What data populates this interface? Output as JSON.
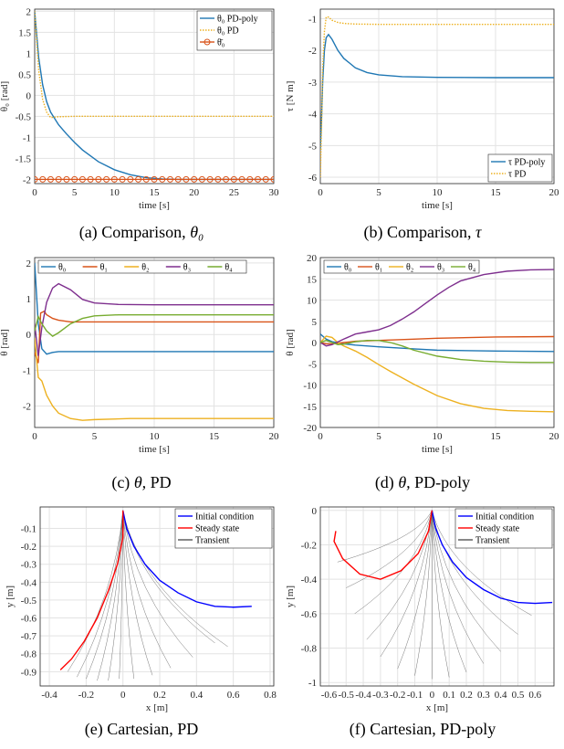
{
  "figure": {
    "captions": [
      {
        "label": "(a)",
        "text": "Comparison,",
        "symbol": "θ₀"
      },
      {
        "label": "(b)",
        "text": "Comparison,",
        "symbol": "τ"
      },
      {
        "label": "(c)",
        "text": "PD",
        "symbol": "θ,"
      },
      {
        "label": "(d)",
        "text": "PD-poly",
        "symbol": "θ,"
      },
      {
        "label": "(e)",
        "text": "Cartesian, PD",
        "symbol": ""
      },
      {
        "label": "(f)",
        "text": "Cartesian, PD-poly",
        "symbol": ""
      }
    ]
  },
  "colors": {
    "blue": "#1f77b4",
    "yellow": "#edb120",
    "orange": "#d95319",
    "purple": "#7e2f8e",
    "green": "#77ac30",
    "deepblue": "#0000ff",
    "red": "#ff0000",
    "grey": "#555555"
  },
  "chart_data": [
    {
      "type": "line",
      "xlabel": "time [s]",
      "ylabel": "θ₀ [rad]",
      "xlim": [
        0,
        30
      ],
      "ylim": [
        -2.1,
        2.05
      ],
      "xticks": [
        0,
        5,
        10,
        15,
        20,
        25,
        30
      ],
      "yticks": [
        2,
        1.5,
        1,
        0.5,
        0,
        -0.5,
        -1,
        -1.5,
        -2
      ],
      "grid": true,
      "legend": "top-right",
      "series": [
        {
          "name": "θ₀ PD-poly",
          "color": "blue",
          "style": "solid",
          "x": [
            0,
            0.5,
            1,
            1.5,
            2,
            3,
            4,
            5,
            6,
            8,
            10,
            12,
            14,
            16,
            18,
            20,
            25,
            30
          ],
          "y": [
            2.0,
            0.9,
            0.25,
            -0.15,
            -0.4,
            -0.7,
            -0.92,
            -1.12,
            -1.3,
            -1.58,
            -1.77,
            -1.89,
            -1.96,
            -1.99,
            -2.0,
            -2.0,
            -2.0,
            -2.0
          ]
        },
        {
          "name": "θ₀ PD",
          "color": "yellow",
          "style": "dotted",
          "x": [
            0,
            0.5,
            1,
            1.5,
            2,
            2.5,
            3,
            5,
            10,
            20,
            30
          ],
          "y": [
            2.0,
            0.6,
            -0.1,
            -0.4,
            -0.53,
            -0.52,
            -0.51,
            -0.5,
            -0.5,
            -0.5,
            -0.5
          ]
        },
        {
          "name": "θ̄₀",
          "color": "orange",
          "style": "circles",
          "x": [
            0,
            1,
            2,
            3,
            4,
            5,
            6,
            7,
            8,
            9,
            10,
            11,
            12,
            13,
            14,
            15,
            16,
            17,
            18,
            19,
            20,
            21,
            22,
            23,
            24,
            25,
            26,
            27,
            28,
            29,
            30
          ],
          "y": [
            -2,
            -2,
            -2,
            -2,
            -2,
            -2,
            -2,
            -2,
            -2,
            -2,
            -2,
            -2,
            -2,
            -2,
            -2,
            -2,
            -2,
            -2,
            -2,
            -2,
            -2,
            -2,
            -2,
            -2,
            -2,
            -2,
            -2,
            -2,
            -2,
            -2,
            -2
          ]
        }
      ]
    },
    {
      "type": "line",
      "xlabel": "time [s]",
      "ylabel": "τ [N m]",
      "xlim": [
        0,
        20
      ],
      "ylim": [
        -6.2,
        -0.7
      ],
      "xticks": [
        0,
        5,
        10,
        15,
        20
      ],
      "yticks": [
        -1,
        -2,
        -3,
        -4,
        -5,
        -6
      ],
      "grid": true,
      "legend": "bottom-right",
      "series": [
        {
          "name": "τ PD-poly",
          "color": "blue",
          "style": "solid",
          "x": [
            0,
            0.1,
            0.2,
            0.35,
            0.5,
            0.7,
            1,
            1.5,
            2,
            3,
            4,
            5,
            7,
            10,
            15,
            20
          ],
          "y": [
            -5.1,
            -4.2,
            -3.0,
            -2.0,
            -1.6,
            -1.5,
            -1.65,
            -2.0,
            -2.25,
            -2.55,
            -2.7,
            -2.77,
            -2.83,
            -2.85,
            -2.86,
            -2.86
          ]
        },
        {
          "name": "τ PD",
          "color": "yellow",
          "style": "dotted",
          "x": [
            0,
            0.1,
            0.2,
            0.35,
            0.5,
            0.7,
            1,
            1.5,
            2,
            3,
            5,
            10,
            20
          ],
          "y": [
            -6.0,
            -4.5,
            -2.6,
            -1.4,
            -0.95,
            -0.95,
            -1.05,
            -1.12,
            -1.15,
            -1.17,
            -1.18,
            -1.18,
            -1.18
          ]
        }
      ]
    },
    {
      "type": "line",
      "xlabel": "time [s]",
      "ylabel": "θ [rad]",
      "xlim": [
        0,
        20
      ],
      "ylim": [
        -2.6,
        2.15
      ],
      "xticks": [
        0,
        5,
        10,
        15,
        20
      ],
      "yticks": [
        2,
        1,
        0,
        -1,
        -2
      ],
      "grid": true,
      "legend": "top",
      "series": [
        {
          "name": "θ₀",
          "color": "blue",
          "x": [
            0,
            0.3,
            0.6,
            1,
            1.5,
            2,
            3,
            5,
            10,
            20
          ],
          "y": [
            2.0,
            0.3,
            -0.4,
            -0.55,
            -0.5,
            -0.48,
            -0.48,
            -0.48,
            -0.48,
            -0.48
          ]
        },
        {
          "name": "θ₁",
          "color": "orange",
          "x": [
            0,
            0.3,
            0.5,
            0.8,
            1,
            1.5,
            2,
            3,
            5,
            10,
            20
          ],
          "y": [
            -0.5,
            -0.8,
            0.6,
            0.65,
            0.55,
            0.45,
            0.4,
            0.35,
            0.35,
            0.35,
            0.35
          ]
        },
        {
          "name": "θ₂",
          "color": "yellow",
          "x": [
            0,
            0.3,
            0.6,
            1,
            1.5,
            2,
            3,
            4,
            5,
            8,
            10,
            20
          ],
          "y": [
            -0.1,
            -1.2,
            -1.3,
            -1.7,
            -2.0,
            -2.2,
            -2.35,
            -2.4,
            -2.38,
            -2.35,
            -2.35,
            -2.35
          ]
        },
        {
          "name": "θ₃",
          "color": "purple",
          "x": [
            0,
            0.3,
            0.6,
            1,
            1.5,
            2,
            3,
            4,
            5,
            7,
            10,
            20
          ],
          "y": [
            0.3,
            -0.6,
            0.2,
            0.9,
            1.3,
            1.42,
            1.25,
            0.98,
            0.88,
            0.84,
            0.83,
            0.83
          ]
        },
        {
          "name": "θ₄",
          "color": "green",
          "x": [
            0,
            0.3,
            0.6,
            1,
            1.5,
            2,
            3,
            4,
            5,
            7,
            10,
            20
          ],
          "y": [
            0.1,
            0.5,
            0.3,
            0.1,
            -0.05,
            0.05,
            0.3,
            0.45,
            0.52,
            0.55,
            0.55,
            0.55
          ]
        }
      ]
    },
    {
      "type": "line",
      "xlabel": "time [s]",
      "ylabel": "θ [rad]",
      "xlim": [
        0,
        20
      ],
      "ylim": [
        -20,
        20
      ],
      "xticks": [
        0,
        5,
        10,
        15,
        20
      ],
      "yticks": [
        20,
        15,
        10,
        5,
        0,
        -5,
        -10,
        -15,
        -20
      ],
      "grid": true,
      "legend": "top",
      "series": [
        {
          "name": "θ₀",
          "color": "blue",
          "x": [
            0,
            0.5,
            1,
            2,
            3,
            5,
            8,
            10,
            15,
            20
          ],
          "y": [
            2.0,
            0.8,
            0.2,
            -0.3,
            -0.6,
            -1.0,
            -1.5,
            -1.8,
            -2.0,
            -2.1
          ]
        },
        {
          "name": "θ₁",
          "color": "orange",
          "x": [
            0,
            0.5,
            1,
            2,
            3,
            5,
            8,
            10,
            15,
            20
          ],
          "y": [
            0.0,
            -0.3,
            -0.3,
            0.0,
            0.3,
            0.5,
            0.8,
            1.0,
            1.3,
            1.4
          ]
        },
        {
          "name": "θ₂",
          "color": "yellow",
          "x": [
            0,
            0.5,
            1,
            1.5,
            2,
            3,
            4,
            5,
            6,
            8,
            10,
            12,
            14,
            16,
            18,
            20
          ],
          "y": [
            0.0,
            1.5,
            1.2,
            0.0,
            -0.8,
            -2.0,
            -3.5,
            -5.2,
            -6.8,
            -9.8,
            -12.5,
            -14.4,
            -15.5,
            -16.0,
            -16.2,
            -16.3
          ]
        },
        {
          "name": "θ₃",
          "color": "purple",
          "x": [
            0,
            0.5,
            1,
            2,
            3,
            4,
            5,
            6,
            7,
            8,
            9,
            10,
            11,
            12,
            14,
            16,
            18,
            20
          ],
          "y": [
            0.0,
            -0.8,
            -0.5,
            0.8,
            2.0,
            2.5,
            3.0,
            4.0,
            5.5,
            7.2,
            9.2,
            11.2,
            13.0,
            14.5,
            16.0,
            16.8,
            17.1,
            17.2
          ]
        },
        {
          "name": "θ₄",
          "color": "green",
          "x": [
            0,
            0.5,
            1,
            1.5,
            2,
            3,
            4,
            5,
            6,
            7,
            8,
            10,
            12,
            14,
            16,
            18,
            20
          ],
          "y": [
            0.0,
            0.5,
            0.0,
            -0.5,
            -0.4,
            0.2,
            0.5,
            0.5,
            0.0,
            -0.8,
            -1.8,
            -3.2,
            -4.0,
            -4.4,
            -4.6,
            -4.7,
            -4.7
          ]
        }
      ]
    },
    {
      "type": "line",
      "xlabel": "x [m]",
      "ylabel": "y [m]",
      "xlim": [
        -0.45,
        0.82
      ],
      "ylim": [
        -0.98,
        0.02
      ],
      "xticks": [
        -0.4,
        -0.2,
        0,
        0.2,
        0.4,
        0.6,
        0.8
      ],
      "yticks": [
        -0.1,
        -0.2,
        -0.3,
        -0.4,
        -0.5,
        -0.6,
        -0.7,
        -0.8,
        -0.9
      ],
      "grid": true,
      "legend": "top-right",
      "series": [
        {
          "name": "Initial condition",
          "color": "deepblue",
          "x": [
            0,
            0.02,
            0.06,
            0.12,
            0.2,
            0.3,
            0.4,
            0.5,
            0.6,
            0.7
          ],
          "y": [
            0,
            -0.1,
            -0.2,
            -0.3,
            -0.39,
            -0.46,
            -0.51,
            -0.535,
            -0.54,
            -0.535
          ]
        },
        {
          "name": "Steady state",
          "color": "red",
          "x": [
            0,
            0.0,
            -0.03,
            -0.08,
            -0.14,
            -0.21,
            -0.28,
            -0.34
          ],
          "y": [
            0,
            -0.15,
            -0.3,
            -0.45,
            -0.6,
            -0.73,
            -0.83,
            -0.89
          ]
        },
        {
          "name": "Transient",
          "color": "grey",
          "x": [],
          "y": []
        }
      ],
      "transient_endpoints": [
        [
          -0.3,
          -0.9
        ],
        [
          -0.25,
          -0.93
        ],
        [
          -0.2,
          -0.94
        ],
        [
          -0.14,
          -0.95
        ],
        [
          -0.08,
          -0.95
        ],
        [
          -0.02,
          -0.94
        ],
        [
          0.06,
          -0.94
        ],
        [
          0.16,
          -0.92
        ],
        [
          0.26,
          -0.88
        ],
        [
          0.38,
          -0.82
        ],
        [
          0.5,
          -0.74
        ],
        [
          0.57,
          -0.76
        ]
      ]
    },
    {
      "type": "line",
      "xlabel": "x [m]",
      "ylabel": "y [m]",
      "xlim": [
        -0.65,
        0.71
      ],
      "ylim": [
        -1.02,
        0.02
      ],
      "xticks": [
        -0.6,
        -0.5,
        -0.4,
        -0.3,
        -0.2,
        -0.1,
        0,
        0.1,
        0.2,
        0.3,
        0.4,
        0.5,
        0.6
      ],
      "yticks": [
        0,
        -0.2,
        -0.4,
        -0.6,
        -0.8,
        -1
      ],
      "grid": true,
      "legend": "top-right",
      "series": [
        {
          "name": "Initial condition",
          "color": "deepblue",
          "x": [
            0,
            0.02,
            0.06,
            0.12,
            0.2,
            0.3,
            0.4,
            0.5,
            0.6,
            0.7
          ],
          "y": [
            0,
            -0.1,
            -0.2,
            -0.3,
            -0.39,
            -0.46,
            -0.51,
            -0.535,
            -0.54,
            -0.535
          ]
        },
        {
          "name": "Steady state",
          "color": "red",
          "x": [
            0,
            -0.02,
            -0.08,
            -0.18,
            -0.3,
            -0.42,
            -0.52,
            -0.57,
            -0.56
          ],
          "y": [
            0,
            -0.12,
            -0.25,
            -0.35,
            -0.4,
            -0.37,
            -0.28,
            -0.18,
            -0.12
          ]
        },
        {
          "name": "Transient",
          "color": "grey",
          "x": [],
          "y": []
        }
      ],
      "transient_endpoints": [
        [
          -0.55,
          -0.3
        ],
        [
          -0.5,
          -0.45
        ],
        [
          -0.45,
          -0.6
        ],
        [
          -0.38,
          -0.75
        ],
        [
          -0.3,
          -0.85
        ],
        [
          -0.2,
          -0.92
        ],
        [
          -0.1,
          -0.96
        ],
        [
          0.0,
          -0.98
        ],
        [
          0.1,
          -0.97
        ],
        [
          0.2,
          -0.94
        ],
        [
          0.3,
          -0.89
        ],
        [
          0.4,
          -0.82
        ],
        [
          0.5,
          -0.72
        ],
        [
          0.58,
          -0.61
        ]
      ]
    }
  ]
}
